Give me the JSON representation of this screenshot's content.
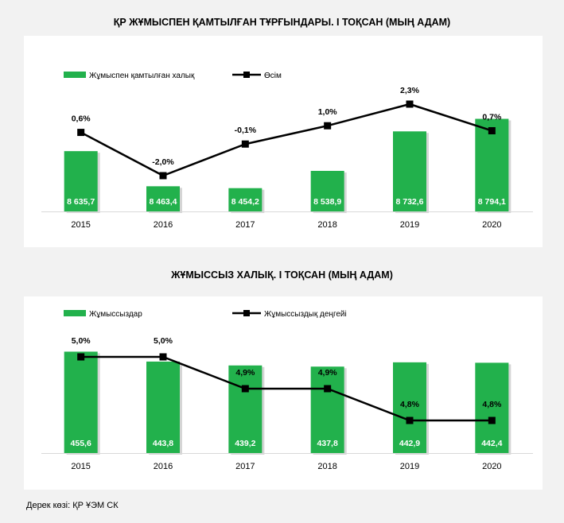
{
  "source": "Дерек көзі: ҚР ҰЭМ СК",
  "colors": {
    "bar": "#22b14c",
    "line": "#000000",
    "bar_label": "#ffffff"
  },
  "chart_data": [
    {
      "type": "bar",
      "title": "ҚР ЖҰМЫСПЕН ҚАМТЫЛҒАН ТҰРҒЫНДАРЫ. I ТОҚСАН (МЫҢ АДАМ)",
      "categories": [
        "2015",
        "2016",
        "2017",
        "2018",
        "2019",
        "2020"
      ],
      "bar_series": {
        "name": "Жұмыспен қамтылған халық",
        "values": [
          8635.7,
          8463.4,
          8454.2,
          8538.9,
          8732.6,
          8794.1
        ],
        "labels": [
          "8 635,7",
          "8 463,4",
          "8 454,2",
          "8 538,9",
          "8 732,6",
          "8 794,1"
        ]
      },
      "line_series": {
        "name": "Өсім",
        "values": [
          0.6,
          -2.0,
          -0.1,
          1.0,
          2.3,
          0.7
        ],
        "labels": [
          "0,6%",
          "-2,0%",
          "-0,1%",
          "1,0%",
          "2,3%",
          "0,7%"
        ]
      },
      "legend": "top-left",
      "grid": false
    },
    {
      "type": "bar",
      "title": "ЖҰМЫССЫЗ ХАЛЫҚ. I ТОҚСАН (МЫҢ АДАМ)",
      "categories": [
        "2015",
        "2016",
        "2017",
        "2018",
        "2019",
        "2020"
      ],
      "bar_series": {
        "name": "Жұмыссыздар",
        "values": [
          455.6,
          443.8,
          439.2,
          437.8,
          442.9,
          442.4
        ],
        "labels": [
          "455,6",
          "443,8",
          "439,2",
          "437,8",
          "442,9",
          "442,4"
        ]
      },
      "line_series": {
        "name": "Жұмыссыздық деңгейі",
        "values": [
          5.0,
          5.0,
          4.9,
          4.9,
          4.8,
          4.8
        ],
        "labels": [
          "5,0%",
          "5,0%",
          "4,9%",
          "4,9%",
          "4,8%",
          "4,8%"
        ]
      },
      "legend": "top-left",
      "grid": false
    }
  ]
}
